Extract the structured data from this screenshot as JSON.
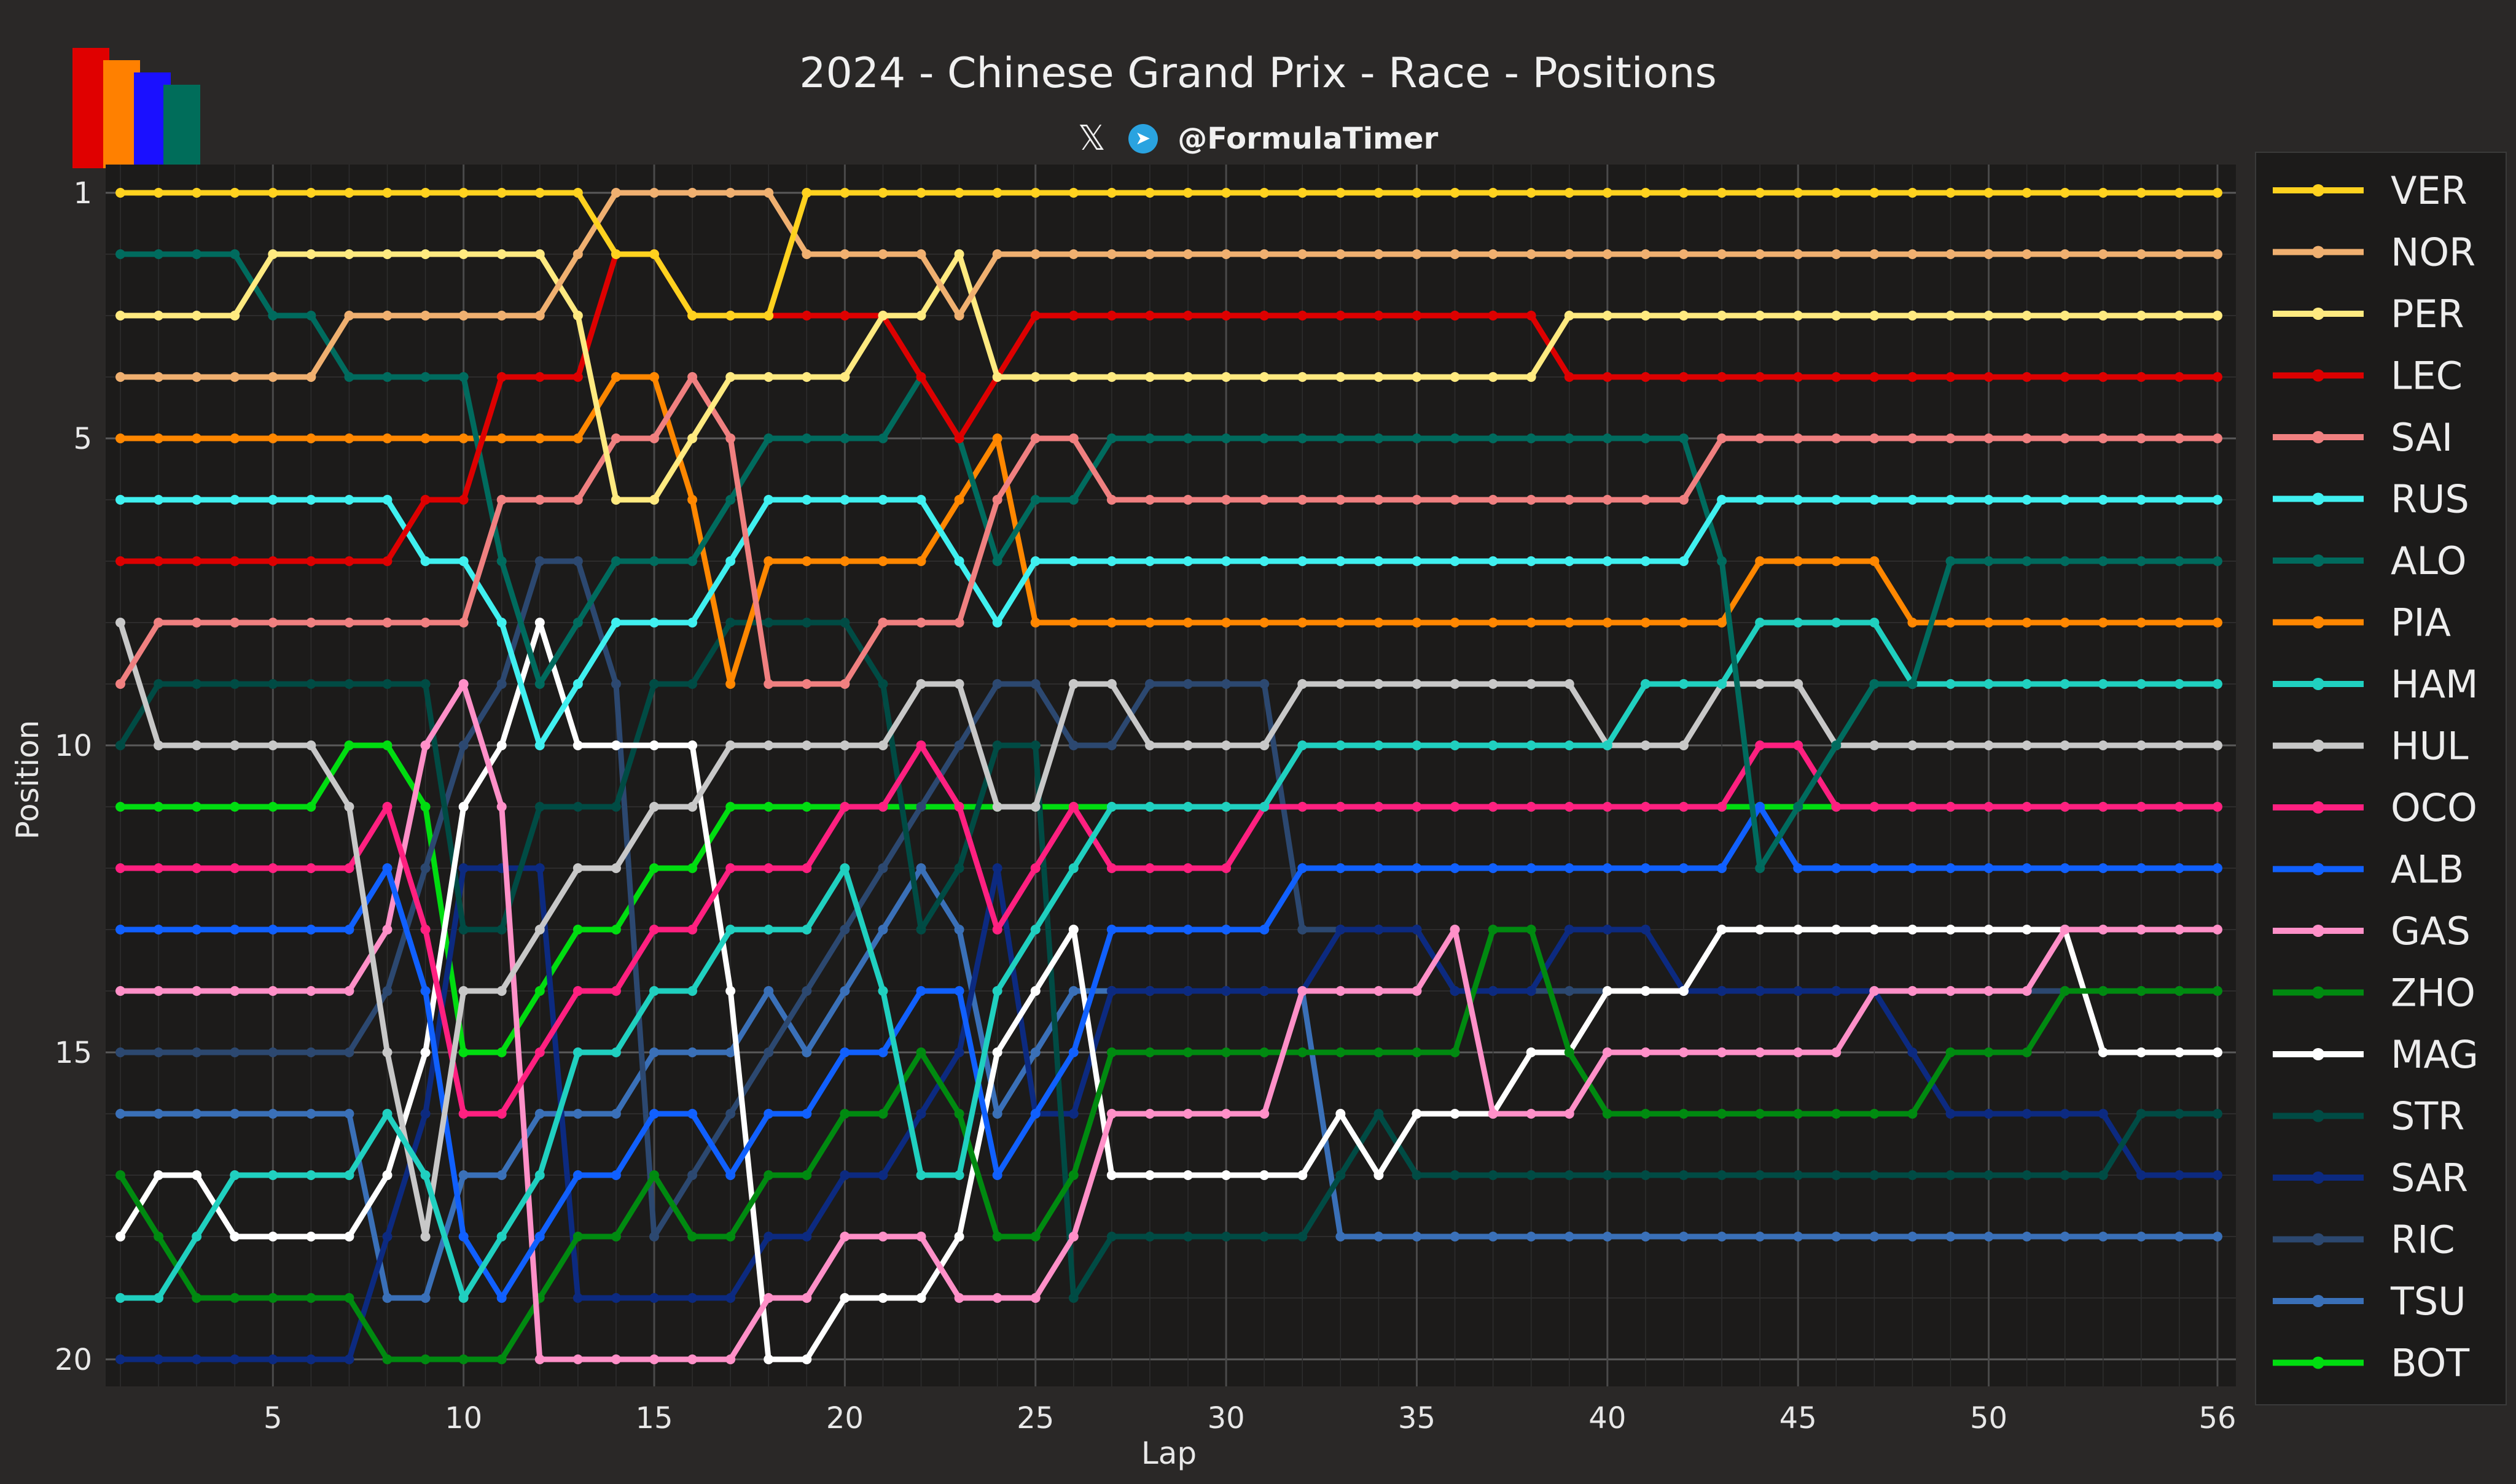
{
  "header": {
    "title": "2024 - Chinese Grand Prix - Race - Positions",
    "handle": "@FormulaTimer"
  },
  "colors": {
    "background": "#2a2827",
    "plot_bg": "#1c1b1a",
    "grid": "#555555",
    "text": "#e8e8e8",
    "logo": [
      "#e00000",
      "#ff8000",
      "#1a10ff",
      "#006d5a"
    ]
  },
  "icons": [
    "x-logo-icon",
    "telegram-icon",
    "formulatimer-logo-icon"
  ],
  "chart_data": {
    "type": "line",
    "title": "2024 - Chinese Grand Prix - Race - Positions",
    "xlabel": "Lap",
    "ylabel": "Position",
    "xlim": [
      1,
      56
    ],
    "ylim": [
      20,
      1
    ],
    "y_inverted": true,
    "xticks": [
      5,
      10,
      15,
      20,
      25,
      30,
      35,
      40,
      45,
      50,
      56
    ],
    "yticks": [
      1,
      5,
      10,
      15,
      20
    ],
    "grid": true,
    "legend": "right",
    "series": [
      {
        "name": "VER",
        "color": "#ffd21f",
        "values": [
          1,
          1,
          1,
          1,
          1,
          1,
          1,
          1,
          1,
          1,
          1,
          1,
          1,
          2,
          2,
          3,
          3,
          3,
          1,
          1,
          1,
          1,
          1,
          1,
          1,
          1,
          1,
          1,
          1,
          1,
          1,
          1,
          1,
          1,
          1,
          1,
          1,
          1,
          1,
          1,
          1,
          1,
          1,
          1,
          1,
          1,
          1,
          1,
          1,
          1,
          1,
          1,
          1,
          1,
          1,
          1
        ]
      },
      {
        "name": "NOR",
        "color": "#f0b070",
        "values": [
          4,
          4,
          4,
          4,
          4,
          4,
          3,
          3,
          3,
          3,
          3,
          3,
          2,
          1,
          1,
          1,
          1,
          1,
          2,
          2,
          2,
          2,
          3,
          2,
          2,
          2,
          2,
          2,
          2,
          2,
          2,
          2,
          2,
          2,
          2,
          2,
          2,
          2,
          2,
          2,
          2,
          2,
          2,
          2,
          2,
          2,
          2,
          2,
          2,
          2,
          2,
          2,
          2,
          2,
          2,
          2
        ]
      },
      {
        "name": "PER",
        "color": "#ffea80",
        "values": [
          3,
          3,
          3,
          3,
          2,
          2,
          2,
          2,
          2,
          2,
          2,
          2,
          3,
          6,
          6,
          5,
          4,
          4,
          4,
          4,
          3,
          3,
          2,
          4,
          4,
          4,
          4,
          4,
          4,
          4,
          4,
          4,
          4,
          4,
          4,
          4,
          4,
          4,
          3,
          3,
          3,
          3,
          3,
          3,
          3,
          3,
          3,
          3,
          3,
          3,
          3,
          3,
          3,
          3,
          3,
          3
        ]
      },
      {
        "name": "LEC",
        "color": "#dd0000",
        "values": [
          7,
          7,
          7,
          7,
          7,
          7,
          7,
          7,
          6,
          6,
          4,
          4,
          4,
          2,
          2,
          3,
          3,
          3,
          3,
          3,
          3,
          4,
          5,
          4,
          3,
          3,
          3,
          3,
          3,
          3,
          3,
          3,
          3,
          3,
          3,
          3,
          3,
          3,
          4,
          4,
          4,
          4,
          4,
          4,
          4,
          4,
          4,
          4,
          4,
          4,
          4,
          4,
          4,
          4,
          4,
          4
        ]
      },
      {
        "name": "SAI",
        "color": "#f08080",
        "values": [
          9,
          8,
          8,
          8,
          8,
          8,
          8,
          8,
          8,
          8,
          6,
          6,
          6,
          5,
          5,
          4,
          5,
          9,
          9,
          9,
          8,
          8,
          8,
          6,
          5,
          5,
          6,
          6,
          6,
          6,
          6,
          6,
          6,
          6,
          6,
          6,
          6,
          6,
          6,
          6,
          6,
          6,
          5,
          5,
          5,
          5,
          5,
          5,
          5,
          5,
          5,
          5,
          5,
          5,
          5,
          5
        ]
      },
      {
        "name": "RUS",
        "color": "#40f0f0",
        "values": [
          6,
          6,
          6,
          6,
          6,
          6,
          6,
          6,
          7,
          7,
          8,
          10,
          9,
          8,
          8,
          8,
          7,
          6,
          6,
          6,
          6,
          6,
          7,
          8,
          7,
          7,
          7,
          7,
          7,
          7,
          7,
          7,
          7,
          7,
          7,
          7,
          7,
          7,
          7,
          7,
          7,
          7,
          6,
          6,
          6,
          6,
          6,
          6,
          6,
          6,
          6,
          6,
          6,
          6,
          6,
          6
        ]
      },
      {
        "name": "ALO",
        "color": "#006b5e",
        "values": [
          2,
          2,
          2,
          2,
          3,
          3,
          4,
          4,
          4,
          4,
          7,
          9,
          8,
          7,
          7,
          7,
          6,
          5,
          5,
          5,
          5,
          4,
          5,
          7,
          6,
          6,
          5,
          5,
          5,
          5,
          5,
          5,
          5,
          5,
          5,
          5,
          5,
          5,
          5,
          5,
          5,
          5,
          7,
          12,
          11,
          10,
          9,
          9,
          7,
          7,
          7,
          7,
          7,
          7,
          7,
          7
        ]
      },
      {
        "name": "PIA",
        "color": "#ff8700",
        "values": [
          5,
          5,
          5,
          5,
          5,
          5,
          5,
          5,
          5,
          5,
          5,
          5,
          5,
          4,
          4,
          6,
          9,
          7,
          7,
          7,
          7,
          7,
          6,
          5,
          8,
          8,
          8,
          8,
          8,
          8,
          8,
          8,
          8,
          8,
          8,
          8,
          8,
          8,
          8,
          8,
          8,
          8,
          8,
          7,
          7,
          7,
          7,
          8,
          8,
          8,
          8,
          8,
          8,
          8,
          8,
          8
        ]
      },
      {
        "name": "HAM",
        "color": "#20d0c0",
        "values": [
          19,
          19,
          18,
          17,
          17,
          17,
          17,
          16,
          17,
          19,
          18,
          17,
          15,
          15,
          14,
          14,
          13,
          13,
          13,
          12,
          14,
          17,
          17,
          14,
          13,
          12,
          11,
          11,
          11,
          11,
          11,
          10,
          10,
          10,
          10,
          10,
          10,
          10,
          10,
          10,
          9,
          9,
          9,
          8,
          8,
          8,
          8,
          9,
          9,
          9,
          9,
          9,
          9,
          9,
          9,
          9
        ]
      },
      {
        "name": "HUL",
        "color": "#c8c8c8",
        "values": [
          8,
          10,
          10,
          10,
          10,
          10,
          11,
          15,
          18,
          14,
          14,
          13,
          12,
          12,
          11,
          11,
          10,
          10,
          10,
          10,
          10,
          9,
          9,
          11,
          11,
          9,
          9,
          10,
          10,
          10,
          10,
          9,
          9,
          9,
          9,
          9,
          9,
          9,
          9,
          10,
          10,
          10,
          9,
          9,
          9,
          10,
          10,
          10,
          10,
          10,
          10,
          10,
          10,
          10,
          10,
          10
        ]
      },
      {
        "name": "OCO",
        "color": "#ff2080",
        "values": [
          12,
          12,
          12,
          12,
          12,
          12,
          12,
          11,
          13,
          16,
          16,
          15,
          14,
          14,
          13,
          13,
          12,
          12,
          12,
          11,
          11,
          10,
          11,
          13,
          12,
          11,
          12,
          12,
          12,
          12,
          11,
          11,
          11,
          11,
          11,
          11,
          11,
          11,
          11,
          11,
          11,
          11,
          11,
          10,
          10,
          11,
          11,
          11,
          11,
          11,
          11,
          11,
          11,
          11,
          11,
          11
        ]
      },
      {
        "name": "ALB",
        "color": "#1060ff",
        "values": [
          13,
          13,
          13,
          13,
          13,
          13,
          13,
          12,
          14,
          18,
          19,
          18,
          17,
          17,
          16,
          16,
          17,
          16,
          16,
          15,
          15,
          14,
          14,
          17,
          16,
          15,
          13,
          13,
          13,
          13,
          13,
          12,
          12,
          12,
          12,
          12,
          12,
          12,
          12,
          12,
          12,
          12,
          12,
          11,
          12,
          12,
          12,
          12,
          12,
          12,
          12,
          12,
          12,
          12,
          12,
          12
        ]
      },
      {
        "name": "GAS",
        "color": "#ff90c8",
        "values": [
          14,
          14,
          14,
          14,
          14,
          14,
          14,
          13,
          10,
          9,
          11,
          20,
          20,
          20,
          20,
          20,
          20,
          19,
          19,
          18,
          18,
          18,
          19,
          19,
          19,
          18,
          16,
          16,
          16,
          16,
          16,
          14,
          14,
          14,
          14,
          13,
          16,
          16,
          16,
          15,
          15,
          15,
          15,
          15,
          15,
          15,
          14,
          14,
          14,
          14,
          14,
          13,
          13,
          13,
          13,
          13
        ]
      },
      {
        "name": "ZHO",
        "color": "#008a10",
        "values": [
          17,
          18,
          19,
          19,
          19,
          19,
          19,
          20,
          20,
          20,
          20,
          19,
          18,
          18,
          17,
          18,
          18,
          17,
          17,
          16,
          16,
          15,
          16,
          18,
          18,
          17,
          15,
          15,
          15,
          15,
          15,
          15,
          15,
          15,
          15,
          15,
          13,
          13,
          15,
          16,
          16,
          16,
          16,
          16,
          16,
          16,
          16,
          16,
          15,
          15,
          15,
          14,
          14,
          14,
          14,
          14
        ]
      },
      {
        "name": "MAG",
        "color": "#ffffff",
        "values": [
          18,
          17,
          17,
          18,
          18,
          18,
          18,
          17,
          15,
          11,
          10,
          8,
          10,
          10,
          10,
          10,
          14,
          20,
          20,
          19,
          19,
          19,
          18,
          15,
          14,
          13,
          17,
          17,
          17,
          17,
          17,
          17,
          16,
          17,
          16,
          16,
          16,
          15,
          15,
          14,
          14,
          14,
          13,
          13,
          13,
          13,
          13,
          13,
          13,
          13,
          13,
          13,
          15,
          15,
          15,
          15
        ]
      },
      {
        "name": "STR",
        "color": "#004b44",
        "values": [
          10,
          9,
          9,
          9,
          9,
          9,
          9,
          9,
          9,
          13,
          13,
          11,
          11,
          11,
          9,
          9,
          8,
          8,
          8,
          8,
          9,
          13,
          12,
          10,
          10,
          19,
          18,
          18,
          18,
          18,
          18,
          18,
          17,
          16,
          17,
          17,
          17,
          17,
          17,
          17,
          17,
          17,
          17,
          17,
          17,
          17,
          17,
          17,
          17,
          17,
          17,
          17,
          17,
          16,
          16,
          16
        ]
      },
      {
        "name": "SAR",
        "color": "#0c2a80",
        "values": [
          20,
          20,
          20,
          20,
          20,
          20,
          20,
          18,
          16,
          12,
          12,
          12,
          19,
          19,
          19,
          19,
          19,
          18,
          18,
          17,
          17,
          16,
          15,
          12,
          16,
          16,
          14,
          14,
          14,
          14,
          14,
          14,
          13,
          13,
          13,
          14,
          14,
          14,
          13,
          13,
          13,
          14,
          14,
          14,
          14,
          14,
          14,
          15,
          16,
          16,
          16,
          16,
          16,
          17,
          17,
          17
        ]
      },
      {
        "name": "RIC",
        "color": "#2c4870",
        "values": [
          15,
          15,
          15,
          15,
          15,
          15,
          15,
          14,
          12,
          10,
          9,
          7,
          7,
          9,
          18,
          17,
          16,
          15,
          14,
          13,
          12,
          11,
          10,
          9,
          9,
          10,
          10,
          9,
          9,
          9,
          9,
          13,
          13,
          13,
          13,
          14,
          14,
          14,
          14,
          14,
          14,
          14,
          14,
          14,
          14,
          14,
          14,
          14,
          14,
          14,
          14,
          14,
          14,
          14,
          14,
          14
        ]
      },
      {
        "name": "TSU",
        "color": "#3a70b8",
        "values": [
          16,
          16,
          16,
          16,
          16,
          16,
          16,
          19,
          19,
          17,
          17,
          16,
          16,
          16,
          15,
          15,
          15,
          14,
          15,
          14,
          13,
          12,
          13,
          16,
          15,
          14,
          14,
          14,
          14,
          14,
          14,
          14,
          18,
          18,
          18,
          18,
          18,
          18,
          18,
          18,
          18,
          18,
          18,
          18,
          18,
          18,
          18,
          18,
          18,
          18,
          18,
          18,
          18,
          18,
          18,
          18
        ]
      },
      {
        "name": "BOT",
        "color": "#00dd10",
        "values": [
          11,
          11,
          11,
          11,
          11,
          11,
          10,
          10,
          11,
          15,
          15,
          14,
          13,
          13,
          12,
          12,
          11,
          11,
          11,
          11,
          11,
          11,
          11,
          11,
          11,
          11,
          11,
          11,
          11,
          11,
          11,
          11,
          11,
          11,
          11,
          11,
          11,
          11,
          11,
          11,
          11,
          11,
          11,
          11,
          11,
          11,
          11,
          11,
          11,
          11,
          11,
          11,
          11,
          11,
          11,
          11
        ]
      }
    ]
  }
}
